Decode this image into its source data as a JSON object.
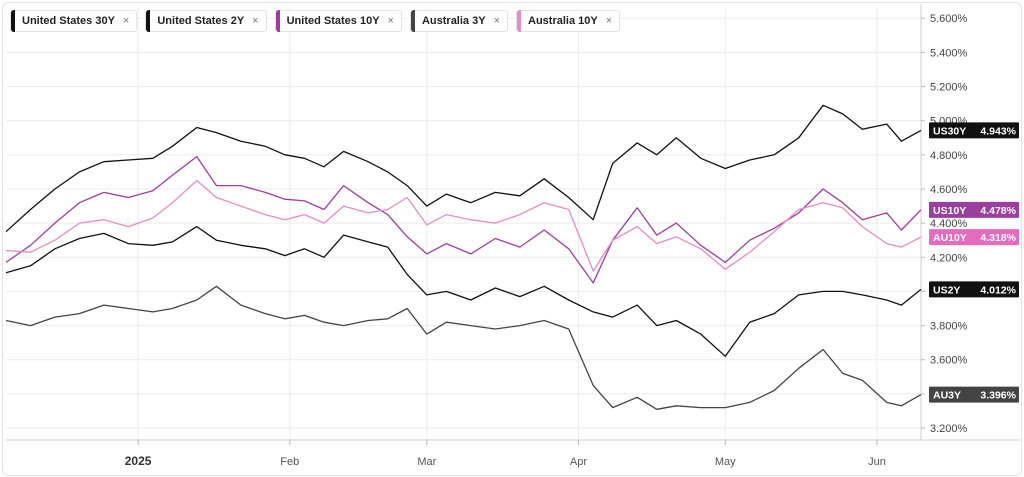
{
  "legend": [
    {
      "name": "United States 30Y",
      "color": "#111111",
      "close": "×"
    },
    {
      "name": "United States 2Y",
      "color": "#111111",
      "close": "×"
    },
    {
      "name": "United States 10Y",
      "color": "#9b3f9e",
      "close": "×"
    },
    {
      "name": "Australia 3Y",
      "color": "#444444",
      "close": "×"
    },
    {
      "name": "Australia 10Y",
      "color": "#e58cc8",
      "close": "×"
    }
  ],
  "chart_data": {
    "type": "line",
    "xlabel": "",
    "ylabel": "",
    "ylim": [
      3.13,
      5.66
    ],
    "x_start": "2024-12-05",
    "x_end": "2025-06-10",
    "x_ticks": [
      {
        "label": "2025",
        "date": "2025-01-01",
        "bold": true
      },
      {
        "label": "Feb",
        "date": "2025-02-01",
        "bold": false
      },
      {
        "label": "Mar",
        "date": "2025-03-01",
        "bold": false
      },
      {
        "label": "Apr",
        "date": "2025-04-01",
        "bold": false
      },
      {
        "label": "May",
        "date": "2025-05-01",
        "bold": false
      },
      {
        "label": "Jun",
        "date": "2025-06-01",
        "bold": false
      }
    ],
    "y_ticks": [
      "3.200%",
      "3.400%",
      "3.600%",
      "3.800%",
      "4.000%",
      "4.200%",
      "4.400%",
      "4.600%",
      "4.800%",
      "5.000%",
      "5.200%",
      "5.400%",
      "5.600%"
    ],
    "grid": true,
    "series": [
      {
        "name": "United States 30Y",
        "tag": "US30Y",
        "last": "4.943%",
        "last_value": 4.943,
        "color": "#111111",
        "tag_color": "#111111",
        "width": 1.3,
        "points": [
          [
            "2024-12-05",
            4.35
          ],
          [
            "2024-12-10",
            4.48
          ],
          [
            "2024-12-15",
            4.6
          ],
          [
            "2024-12-20",
            4.7
          ],
          [
            "2024-12-25",
            4.76
          ],
          [
            "2024-12-30",
            4.77
          ],
          [
            "2025-01-04",
            4.78
          ],
          [
            "2025-01-08",
            4.85
          ],
          [
            "2025-01-13",
            4.96
          ],
          [
            "2025-01-17",
            4.93
          ],
          [
            "2025-01-22",
            4.88
          ],
          [
            "2025-01-27",
            4.85
          ],
          [
            "2025-01-31",
            4.8
          ],
          [
            "2025-02-04",
            4.78
          ],
          [
            "2025-02-08",
            4.73
          ],
          [
            "2025-02-12",
            4.82
          ],
          [
            "2025-02-17",
            4.76
          ],
          [
            "2025-02-21",
            4.7
          ],
          [
            "2025-02-25",
            4.62
          ],
          [
            "2025-03-01",
            4.5
          ],
          [
            "2025-03-05",
            4.57
          ],
          [
            "2025-03-10",
            4.52
          ],
          [
            "2025-03-15",
            4.58
          ],
          [
            "2025-03-20",
            4.56
          ],
          [
            "2025-03-25",
            4.66
          ],
          [
            "2025-03-30",
            4.55
          ],
          [
            "2025-04-04",
            4.42
          ],
          [
            "2025-04-08",
            4.75
          ],
          [
            "2025-04-13",
            4.87
          ],
          [
            "2025-04-17",
            4.8
          ],
          [
            "2025-04-21",
            4.9
          ],
          [
            "2025-04-26",
            4.78
          ],
          [
            "2025-05-01",
            4.72
          ],
          [
            "2025-05-06",
            4.77
          ],
          [
            "2025-05-11",
            4.8
          ],
          [
            "2025-05-16",
            4.9
          ],
          [
            "2025-05-21",
            5.09
          ],
          [
            "2025-05-25",
            5.04
          ],
          [
            "2025-05-29",
            4.95
          ],
          [
            "2025-06-03",
            4.98
          ],
          [
            "2025-06-06",
            4.88
          ],
          [
            "2025-06-10",
            4.943
          ]
        ]
      },
      {
        "name": "United States 10Y",
        "tag": "US10Y",
        "last": "4.478%",
        "last_value": 4.478,
        "color": "#9b3f9e",
        "tag_color": "#9b3f9e",
        "width": 1.3,
        "points": [
          [
            "2024-12-05",
            4.17
          ],
          [
            "2024-12-10",
            4.27
          ],
          [
            "2024-12-15",
            4.4
          ],
          [
            "2024-12-20",
            4.52
          ],
          [
            "2024-12-25",
            4.58
          ],
          [
            "2024-12-30",
            4.55
          ],
          [
            "2025-01-04",
            4.59
          ],
          [
            "2025-01-08",
            4.68
          ],
          [
            "2025-01-13",
            4.79
          ],
          [
            "2025-01-17",
            4.62
          ],
          [
            "2025-01-22",
            4.62
          ],
          [
            "2025-01-27",
            4.58
          ],
          [
            "2025-01-31",
            4.54
          ],
          [
            "2025-02-04",
            4.53
          ],
          [
            "2025-02-08",
            4.48
          ],
          [
            "2025-02-12",
            4.62
          ],
          [
            "2025-02-17",
            4.52
          ],
          [
            "2025-02-21",
            4.45
          ],
          [
            "2025-02-25",
            4.32
          ],
          [
            "2025-03-01",
            4.22
          ],
          [
            "2025-03-05",
            4.28
          ],
          [
            "2025-03-10",
            4.22
          ],
          [
            "2025-03-15",
            4.31
          ],
          [
            "2025-03-20",
            4.26
          ],
          [
            "2025-03-25",
            4.36
          ],
          [
            "2025-03-30",
            4.25
          ],
          [
            "2025-04-04",
            4.05
          ],
          [
            "2025-04-08",
            4.3
          ],
          [
            "2025-04-13",
            4.49
          ],
          [
            "2025-04-17",
            4.33
          ],
          [
            "2025-04-21",
            4.4
          ],
          [
            "2025-04-26",
            4.27
          ],
          [
            "2025-05-01",
            4.17
          ],
          [
            "2025-05-06",
            4.3
          ],
          [
            "2025-05-11",
            4.37
          ],
          [
            "2025-05-16",
            4.46
          ],
          [
            "2025-05-21",
            4.6
          ],
          [
            "2025-05-25",
            4.52
          ],
          [
            "2025-05-29",
            4.42
          ],
          [
            "2025-06-03",
            4.46
          ],
          [
            "2025-06-06",
            4.36
          ],
          [
            "2025-06-10",
            4.478
          ]
        ]
      },
      {
        "name": "Australia 10Y",
        "tag": "AU10Y",
        "last": "4.318%",
        "last_value": 4.318,
        "color": "#e58cc8",
        "tag_color": "#e46bbd",
        "width": 1.3,
        "points": [
          [
            "2024-12-05",
            4.24
          ],
          [
            "2024-12-10",
            4.23
          ],
          [
            "2024-12-15",
            4.3
          ],
          [
            "2024-12-20",
            4.4
          ],
          [
            "2024-12-25",
            4.42
          ],
          [
            "2024-12-30",
            4.38
          ],
          [
            "2025-01-04",
            4.43
          ],
          [
            "2025-01-08",
            4.52
          ],
          [
            "2025-01-13",
            4.65
          ],
          [
            "2025-01-17",
            4.55
          ],
          [
            "2025-01-22",
            4.5
          ],
          [
            "2025-01-27",
            4.45
          ],
          [
            "2025-01-31",
            4.42
          ],
          [
            "2025-02-04",
            4.45
          ],
          [
            "2025-02-08",
            4.4
          ],
          [
            "2025-02-12",
            4.5
          ],
          [
            "2025-02-17",
            4.46
          ],
          [
            "2025-02-21",
            4.48
          ],
          [
            "2025-02-25",
            4.55
          ],
          [
            "2025-03-01",
            4.39
          ],
          [
            "2025-03-05",
            4.45
          ],
          [
            "2025-03-10",
            4.42
          ],
          [
            "2025-03-15",
            4.4
          ],
          [
            "2025-03-20",
            4.45
          ],
          [
            "2025-03-25",
            4.52
          ],
          [
            "2025-03-30",
            4.48
          ],
          [
            "2025-04-04",
            4.12
          ],
          [
            "2025-04-08",
            4.3
          ],
          [
            "2025-04-13",
            4.38
          ],
          [
            "2025-04-17",
            4.28
          ],
          [
            "2025-04-21",
            4.32
          ],
          [
            "2025-04-26",
            4.25
          ],
          [
            "2025-05-01",
            4.13
          ],
          [
            "2025-05-06",
            4.23
          ],
          [
            "2025-05-11",
            4.35
          ],
          [
            "2025-05-16",
            4.48
          ],
          [
            "2025-05-21",
            4.52
          ],
          [
            "2025-05-25",
            4.49
          ],
          [
            "2025-05-29",
            4.38
          ],
          [
            "2025-06-03",
            4.28
          ],
          [
            "2025-06-06",
            4.26
          ],
          [
            "2025-06-10",
            4.318
          ]
        ]
      },
      {
        "name": "United States 2Y",
        "tag": "US2Y",
        "last": "4.012%",
        "last_value": 4.012,
        "color": "#111111",
        "tag_color": "#111111",
        "width": 1.3,
        "points": [
          [
            "2024-12-05",
            4.11
          ],
          [
            "2024-12-10",
            4.15
          ],
          [
            "2024-12-15",
            4.25
          ],
          [
            "2024-12-20",
            4.31
          ],
          [
            "2024-12-25",
            4.34
          ],
          [
            "2024-12-30",
            4.28
          ],
          [
            "2025-01-04",
            4.27
          ],
          [
            "2025-01-08",
            4.29
          ],
          [
            "2025-01-13",
            4.38
          ],
          [
            "2025-01-17",
            4.3
          ],
          [
            "2025-01-22",
            4.27
          ],
          [
            "2025-01-27",
            4.25
          ],
          [
            "2025-01-31",
            4.21
          ],
          [
            "2025-02-04",
            4.25
          ],
          [
            "2025-02-08",
            4.2
          ],
          [
            "2025-02-12",
            4.33
          ],
          [
            "2025-02-17",
            4.29
          ],
          [
            "2025-02-21",
            4.26
          ],
          [
            "2025-02-25",
            4.1
          ],
          [
            "2025-03-01",
            3.98
          ],
          [
            "2025-03-05",
            4.0
          ],
          [
            "2025-03-10",
            3.95
          ],
          [
            "2025-03-15",
            4.02
          ],
          [
            "2025-03-20",
            3.97
          ],
          [
            "2025-03-25",
            4.03
          ],
          [
            "2025-03-30",
            3.95
          ],
          [
            "2025-04-04",
            3.88
          ],
          [
            "2025-04-08",
            3.85
          ],
          [
            "2025-04-13",
            3.92
          ],
          [
            "2025-04-17",
            3.8
          ],
          [
            "2025-04-21",
            3.83
          ],
          [
            "2025-04-26",
            3.75
          ],
          [
            "2025-05-01",
            3.62
          ],
          [
            "2025-05-06",
            3.82
          ],
          [
            "2025-05-11",
            3.87
          ],
          [
            "2025-05-16",
            3.98
          ],
          [
            "2025-05-21",
            4.0
          ],
          [
            "2025-05-25",
            4.0
          ],
          [
            "2025-05-29",
            3.98
          ],
          [
            "2025-06-03",
            3.95
          ],
          [
            "2025-06-06",
            3.92
          ],
          [
            "2025-06-10",
            4.012
          ]
        ]
      },
      {
        "name": "Australia 3Y",
        "tag": "AU3Y",
        "last": "3.396%",
        "last_value": 3.396,
        "color": "#444444",
        "tag_color": "#444444",
        "width": 1.3,
        "points": [
          [
            "2024-12-05",
            3.83
          ],
          [
            "2024-12-10",
            3.8
          ],
          [
            "2024-12-15",
            3.85
          ],
          [
            "2024-12-20",
            3.87
          ],
          [
            "2024-12-25",
            3.92
          ],
          [
            "2024-12-30",
            3.9
          ],
          [
            "2025-01-04",
            3.88
          ],
          [
            "2025-01-08",
            3.9
          ],
          [
            "2025-01-13",
            3.95
          ],
          [
            "2025-01-17",
            4.03
          ],
          [
            "2025-01-22",
            3.92
          ],
          [
            "2025-01-27",
            3.87
          ],
          [
            "2025-01-31",
            3.84
          ],
          [
            "2025-02-04",
            3.86
          ],
          [
            "2025-02-08",
            3.82
          ],
          [
            "2025-02-12",
            3.8
          ],
          [
            "2025-02-17",
            3.83
          ],
          [
            "2025-02-21",
            3.84
          ],
          [
            "2025-02-25",
            3.9
          ],
          [
            "2025-03-01",
            3.75
          ],
          [
            "2025-03-05",
            3.82
          ],
          [
            "2025-03-10",
            3.8
          ],
          [
            "2025-03-15",
            3.78
          ],
          [
            "2025-03-20",
            3.8
          ],
          [
            "2025-03-25",
            3.83
          ],
          [
            "2025-03-30",
            3.78
          ],
          [
            "2025-04-04",
            3.45
          ],
          [
            "2025-04-08",
            3.32
          ],
          [
            "2025-04-13",
            3.38
          ],
          [
            "2025-04-17",
            3.31
          ],
          [
            "2025-04-21",
            3.33
          ],
          [
            "2025-04-26",
            3.32
          ],
          [
            "2025-05-01",
            3.32
          ],
          [
            "2025-05-06",
            3.35
          ],
          [
            "2025-05-11",
            3.42
          ],
          [
            "2025-05-16",
            3.55
          ],
          [
            "2025-05-21",
            3.66
          ],
          [
            "2025-05-25",
            3.52
          ],
          [
            "2025-05-29",
            3.48
          ],
          [
            "2025-06-03",
            3.35
          ],
          [
            "2025-06-06",
            3.33
          ],
          [
            "2025-06-10",
            3.396
          ]
        ]
      }
    ]
  }
}
